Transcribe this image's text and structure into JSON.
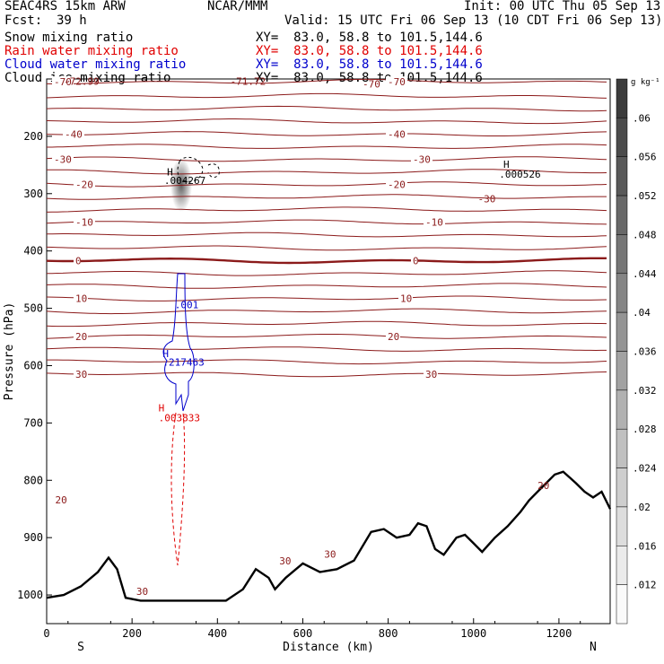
{
  "header": {
    "model": "SEAC4RS 15km ARW",
    "org": "NCAR/MMM",
    "init": "Init: 00 UTC Thu 05 Sep 13",
    "fcst_label": "Fcst:",
    "fcst_value": "39 h",
    "valid": "Valid: 15 UTC Fri 06 Sep 13 (10 CDT Fri 06 Sep 13)"
  },
  "fields": [
    {
      "name": "Snow mixing ratio",
      "color": "#000000",
      "xy": "XY=  83.0, 58.8 to 101.5,144.6"
    },
    {
      "name": "Rain water mixing ratio",
      "color": "#e00000",
      "xy": "XY=  83.0, 58.8 to 101.5,144.6"
    },
    {
      "name": "Cloud water mixing ratio",
      "color": "#0000cc",
      "xy": "XY=  83.0, 58.8 to 101.5,144.6"
    },
    {
      "name": "Cloud ice mixing ratio",
      "color": "#000000",
      "xy": "XY=  83.0, 58.8 to 101.5,144.6"
    }
  ],
  "colors": {
    "isotherm": "#8b1a1a",
    "terrain": "#000000",
    "rain": "#e00000",
    "cloud_water": "#0000cc",
    "shade": "#555555"
  },
  "chart_data": {
    "type": "cross-section",
    "xlabel": "Distance (km)",
    "ylabel": "Pressure (hPa)",
    "xlim": [
      0,
      1320
    ],
    "ylim": [
      1050,
      100
    ],
    "x_ticks": [
      0,
      200,
      400,
      600,
      800,
      1000,
      1200
    ],
    "y_ticks": [
      200,
      300,
      400,
      500,
      600,
      700,
      800,
      900,
      1000
    ],
    "end_labels": {
      "left": "S",
      "right": "N"
    },
    "colorbar": {
      "units": "g kg⁻¹",
      "ticks": [
        ".06",
        ".056",
        ".052",
        ".048",
        ".044",
        ".04",
        ".036",
        ".032",
        ".028",
        ".024",
        ".02",
        ".016",
        ".012"
      ]
    },
    "isotherms": [
      {
        "label": "-70",
        "p": 105
      },
      {
        "label": "",
        "p": 130
      },
      {
        "label": "",
        "p": 152
      },
      {
        "label": "",
        "p": 174
      },
      {
        "label": "-40",
        "p": 196
      },
      {
        "label": "",
        "p": 218
      },
      {
        "label": "-30",
        "p": 240
      },
      {
        "label": "",
        "p": 262
      },
      {
        "label": "-20",
        "p": 284
      },
      {
        "label": "",
        "p": 306
      },
      {
        "label": "",
        "p": 328
      },
      {
        "label": "-10",
        "p": 350
      },
      {
        "label": "",
        "p": 372
      },
      {
        "label": "",
        "p": 395
      },
      {
        "label": "0",
        "p": 417
      },
      {
        "label": "",
        "p": 439
      },
      {
        "label": "",
        "p": 461
      },
      {
        "label": "10",
        "p": 483
      },
      {
        "label": "",
        "p": 505
      },
      {
        "label": "",
        "p": 527
      },
      {
        "label": "20",
        "p": 549
      },
      {
        "label": "",
        "p": 571
      },
      {
        "label": "",
        "p": 593
      },
      {
        "label": "30",
        "p": 615
      }
    ],
    "terrain": [
      [
        0,
        1005
      ],
      [
        40,
        1000
      ],
      [
        80,
        985
      ],
      [
        120,
        960
      ],
      [
        145,
        935
      ],
      [
        165,
        955
      ],
      [
        185,
        1005
      ],
      [
        220,
        1010
      ],
      [
        300,
        1010
      ],
      [
        420,
        1010
      ],
      [
        460,
        990
      ],
      [
        490,
        955
      ],
      [
        520,
        970
      ],
      [
        535,
        990
      ],
      [
        560,
        970
      ],
      [
        600,
        945
      ],
      [
        640,
        960
      ],
      [
        680,
        955
      ],
      [
        720,
        940
      ],
      [
        760,
        890
      ],
      [
        790,
        885
      ],
      [
        820,
        900
      ],
      [
        850,
        895
      ],
      [
        870,
        875
      ],
      [
        890,
        880
      ],
      [
        910,
        920
      ],
      [
        930,
        930
      ],
      [
        960,
        900
      ],
      [
        980,
        895
      ],
      [
        1000,
        910
      ],
      [
        1020,
        925
      ],
      [
        1050,
        900
      ],
      [
        1080,
        880
      ],
      [
        1110,
        855
      ],
      [
        1130,
        835
      ],
      [
        1150,
        820
      ],
      [
        1170,
        805
      ],
      [
        1190,
        790
      ],
      [
        1210,
        785
      ],
      [
        1240,
        805
      ],
      [
        1260,
        820
      ],
      [
        1280,
        830
      ],
      [
        1300,
        820
      ],
      [
        1320,
        850
      ]
    ],
    "annotations": [
      {
        "text": "-72.99",
        "x": 40,
        "y": 110,
        "color": "#8b1a1a"
      },
      {
        "text": "-71.72",
        "x": 430,
        "y": 110,
        "color": "#8b1a1a"
      },
      {
        "text": "-70",
        "x": 740,
        "y": 115,
        "color": "#8b1a1a"
      },
      {
        "text": "H",
        "x": 282,
        "y": 268,
        "color": "#000000"
      },
      {
        "text": ".004267",
        "x": 275,
        "y": 283,
        "color": "#000000"
      },
      {
        "text": "H",
        "x": 1070,
        "y": 255,
        "color": "#000000"
      },
      {
        "text": ".000526",
        "x": 1060,
        "y": 272,
        "color": "#000000"
      },
      {
        "text": "-30",
        "x": 1010,
        "y": 315,
        "color": "#8b1a1a"
      },
      {
        "text": ".001",
        "x": 300,
        "y": 500,
        "color": "#0000cc"
      },
      {
        "text": "H",
        "x": 272,
        "y": 585,
        "color": "#0000cc"
      },
      {
        "text": ".217463",
        "x": 272,
        "y": 600,
        "color": "#0000cc"
      },
      {
        "text": "H",
        "x": 262,
        "y": 680,
        "color": "#e00000"
      },
      {
        "text": ".003833",
        "x": 262,
        "y": 697,
        "color": "#e00000"
      },
      {
        "text": "30",
        "x": 545,
        "y": 947,
        "color": "#8b1a1a"
      },
      {
        "text": "30",
        "x": 650,
        "y": 935,
        "color": "#8b1a1a"
      },
      {
        "text": "20",
        "x": 20,
        "y": 840,
        "color": "#8b1a1a"
      },
      {
        "text": "20",
        "x": 1150,
        "y": 815,
        "color": "#8b1a1a"
      },
      {
        "text": "30",
        "x": 210,
        "y": 1000,
        "color": "#8b1a1a"
      }
    ]
  }
}
